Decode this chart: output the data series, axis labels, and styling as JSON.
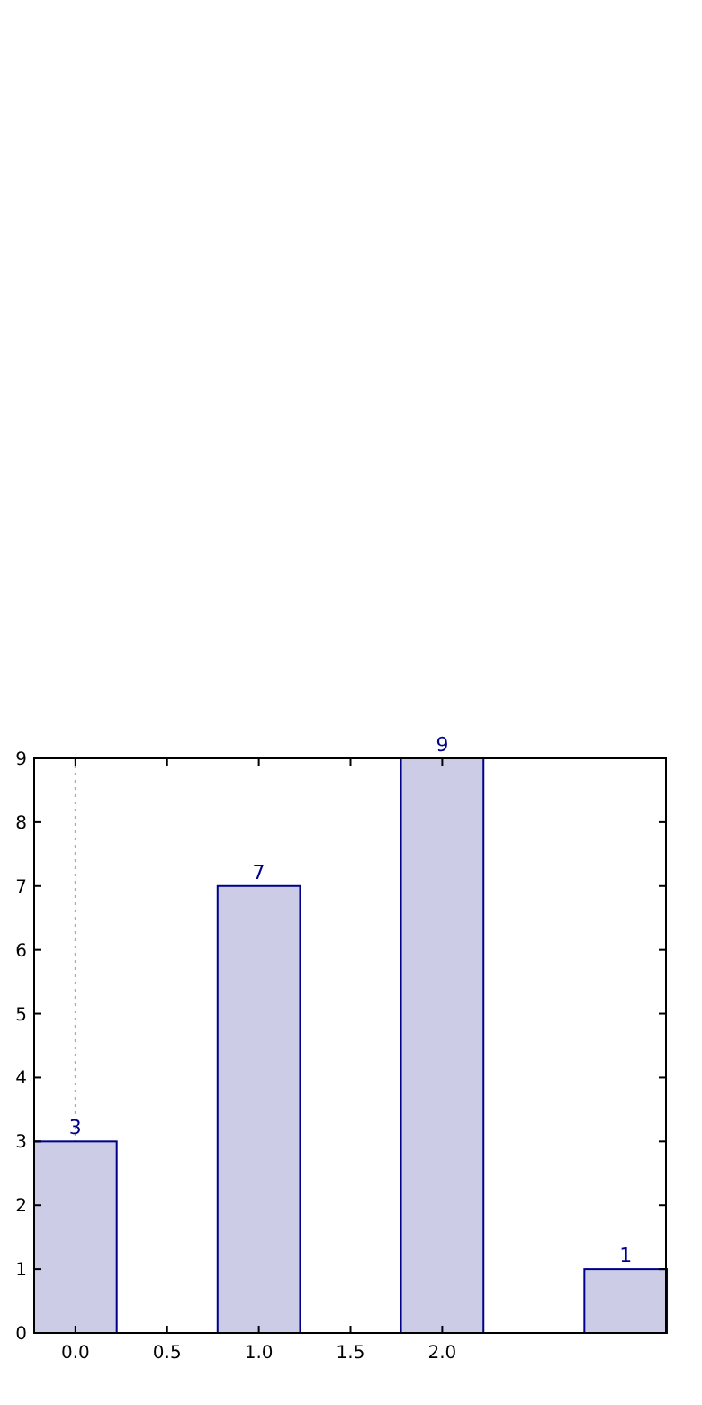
{
  "chart_data": {
    "type": "bar",
    "x": [
      0,
      1,
      2,
      3
    ],
    "values": [
      3,
      7,
      9,
      1
    ],
    "color": "#cccce6",
    "data_labels": true,
    "xlim": [
      -0.225,
      3.22
    ],
    "xticks": [
      {
        "value": 0,
        "label": "0.0"
      },
      {
        "value": 0.5,
        "label": "0.5"
      },
      {
        "value": 1,
        "label": "1.0"
      },
      {
        "value": 1.5,
        "label": "1.5"
      },
      {
        "value": 2,
        "label": "2.0"
      }
    ],
    "ylim": [
      0,
      9
    ],
    "yticks": [
      0,
      1,
      2,
      3,
      4,
      5,
      6,
      7,
      8,
      9
    ],
    "ref_lines": [
      {
        "axis": "x",
        "value": 0,
        "color": "#aaaaaa",
        "line_style": "dotted"
      }
    ]
  }
}
